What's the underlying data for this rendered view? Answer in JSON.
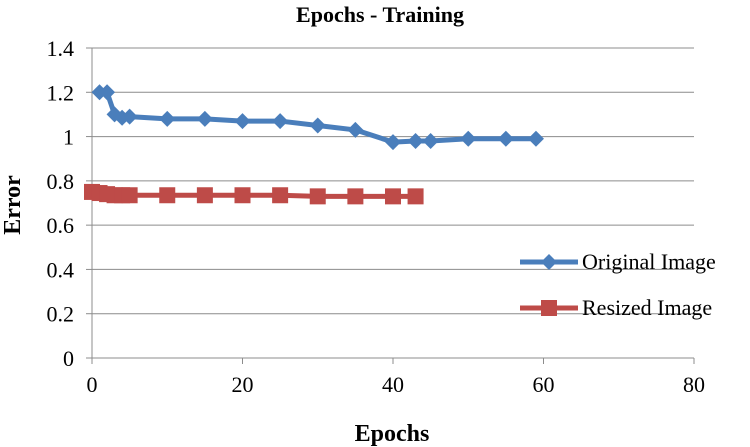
{
  "chart_data": {
    "type": "line",
    "title": "Epochs - Training",
    "xlabel": "Epochs",
    "ylabel": "Error",
    "xlim": [
      0,
      80
    ],
    "ylim": [
      0,
      1.4
    ],
    "x_ticks": [
      0,
      20,
      40,
      60,
      80
    ],
    "y_ticks": [
      0,
      0.2,
      0.4,
      0.6,
      0.8,
      1,
      1.2,
      1.4
    ],
    "x_tick_labels": [
      "0",
      "20",
      "40",
      "60",
      "80"
    ],
    "y_tick_labels": [
      "0",
      "0.2",
      "0.4",
      "0.6",
      "0.8",
      "1",
      "1.2",
      "1.4"
    ],
    "grid": "horizontal",
    "legend_position": "right",
    "series": [
      {
        "name": "Original Image",
        "color": "#4a7ebb",
        "marker": "diamond",
        "x": [
          1,
          2,
          3,
          4,
          5,
          10,
          15,
          20,
          25,
          30,
          35,
          40,
          43,
          45,
          50,
          55,
          59
        ],
        "y": [
          1.2,
          1.2,
          1.1,
          1.085,
          1.09,
          1.08,
          1.08,
          1.07,
          1.07,
          1.05,
          1.03,
          0.975,
          0.98,
          0.98,
          0.99,
          0.99,
          0.99
        ]
      },
      {
        "name": "Resized Image",
        "color": "#be4b48",
        "marker": "square",
        "x": [
          0,
          1,
          2,
          3,
          4,
          5,
          10,
          15,
          20,
          25,
          30,
          35,
          40,
          43
        ],
        "y": [
          0.75,
          0.745,
          0.74,
          0.735,
          0.735,
          0.735,
          0.735,
          0.735,
          0.735,
          0.735,
          0.73,
          0.73,
          0.73,
          0.73
        ]
      }
    ]
  }
}
